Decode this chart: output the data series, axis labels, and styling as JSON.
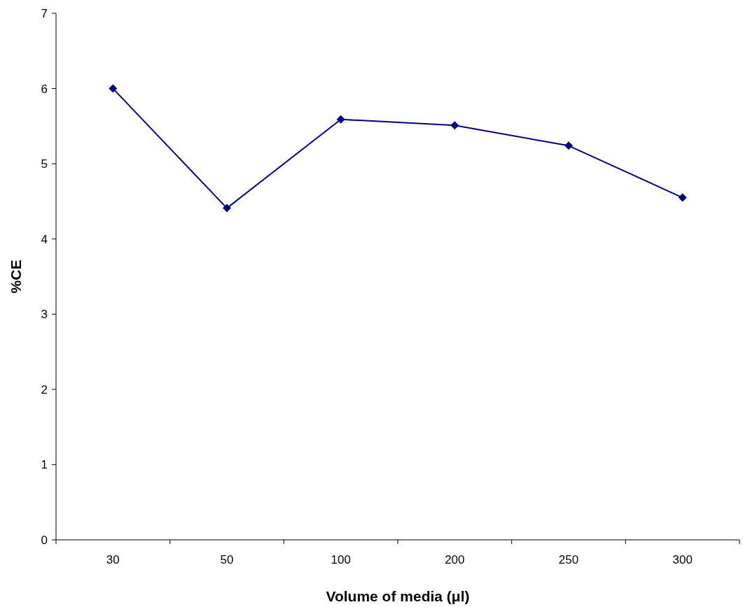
{
  "chart_data": {
    "type": "line",
    "xlabel": "Volume of media (μl)",
    "ylabel": "%CE",
    "categories": [
      "30",
      "50",
      "100",
      "200",
      "250",
      "300"
    ],
    "series": [
      {
        "color": "#000080",
        "values": [
          6.0,
          4.41,
          5.59,
          5.51,
          5.24,
          4.55
        ]
      }
    ],
    "ylim": [
      0,
      7
    ],
    "yticks": [
      0,
      1,
      2,
      3,
      4,
      5,
      6,
      7
    ],
    "marker": "diamond",
    "line_style": "solid",
    "grid": false
  }
}
